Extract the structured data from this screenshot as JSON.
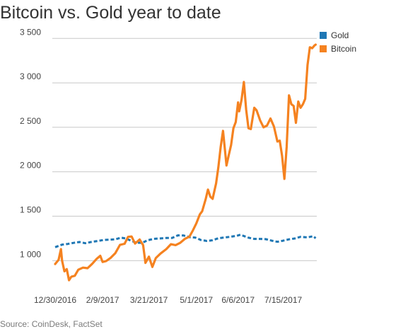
{
  "title": "Bitcoin vs. Gold year to date",
  "source": "Source: CoinDesk, FactSet",
  "chart_data": {
    "type": "line",
    "title": "Bitcoin vs. Gold year to date",
    "xlabel": "",
    "ylabel": "",
    "x_ticks": [
      "12/30/2016",
      "2/9/2017",
      "3/21/2017",
      "5/1/2017",
      "6/6/2017",
      "7/15/2017"
    ],
    "y_ticks": [
      1000,
      1500,
      2000,
      2500,
      3000,
      3500
    ],
    "y_tick_labels": [
      "1 000",
      "1 500",
      "2 000",
      "2 500",
      "3 000",
      "3 500"
    ],
    "ylim": [
      780,
      3550
    ],
    "xlim": [
      "2016-12-30",
      "2017-08-13"
    ],
    "grid": true,
    "legend_position": "top-right",
    "series": [
      {
        "name": "Gold",
        "color": "#1f77b4",
        "style": "dashed",
        "points": [
          [
            "2016-12-30",
            1152
          ],
          [
            "2017-01-05",
            1180
          ],
          [
            "2017-01-10",
            1188
          ],
          [
            "2017-01-15",
            1200
          ],
          [
            "2017-01-20",
            1210
          ],
          [
            "2017-01-25",
            1196
          ],
          [
            "2017-01-30",
            1210
          ],
          [
            "2017-02-05",
            1222
          ],
          [
            "2017-02-10",
            1233
          ],
          [
            "2017-02-15",
            1236
          ],
          [
            "2017-02-20",
            1240
          ],
          [
            "2017-02-25",
            1258
          ],
          [
            "2017-03-01",
            1250
          ],
          [
            "2017-03-05",
            1228
          ],
          [
            "2017-03-10",
            1203
          ],
          [
            "2017-03-15",
            1200
          ],
          [
            "2017-03-20",
            1230
          ],
          [
            "2017-03-25",
            1245
          ],
          [
            "2017-03-30",
            1250
          ],
          [
            "2017-04-05",
            1255
          ],
          [
            "2017-04-10",
            1255
          ],
          [
            "2017-04-15",
            1285
          ],
          [
            "2017-04-20",
            1283
          ],
          [
            "2017-04-25",
            1265
          ],
          [
            "2017-04-30",
            1260
          ],
          [
            "2017-05-05",
            1232
          ],
          [
            "2017-05-10",
            1222
          ],
          [
            "2017-05-15",
            1230
          ],
          [
            "2017-05-20",
            1252
          ],
          [
            "2017-05-25",
            1260
          ],
          [
            "2017-05-30",
            1268
          ],
          [
            "2017-06-05",
            1280
          ],
          [
            "2017-06-08",
            1292
          ],
          [
            "2017-06-15",
            1258
          ],
          [
            "2017-06-20",
            1245
          ],
          [
            "2017-06-25",
            1245
          ],
          [
            "2017-06-30",
            1242
          ],
          [
            "2017-07-05",
            1225
          ],
          [
            "2017-07-10",
            1212
          ],
          [
            "2017-07-15",
            1225
          ],
          [
            "2017-07-20",
            1240
          ],
          [
            "2017-07-25",
            1250
          ],
          [
            "2017-07-30",
            1268
          ],
          [
            "2017-08-05",
            1262
          ],
          [
            "2017-08-10",
            1275
          ],
          [
            "2017-08-12",
            1252
          ]
        ]
      },
      {
        "name": "Bitcoin",
        "color": "#f58220",
        "style": "solid",
        "points": [
          [
            "2016-12-30",
            962
          ],
          [
            "2017-01-02",
            1010
          ],
          [
            "2017-01-04",
            1130
          ],
          [
            "2017-01-05",
            1000
          ],
          [
            "2017-01-07",
            880
          ],
          [
            "2017-01-09",
            905
          ],
          [
            "2017-01-11",
            780
          ],
          [
            "2017-01-13",
            820
          ],
          [
            "2017-01-16",
            830
          ],
          [
            "2017-01-19",
            898
          ],
          [
            "2017-01-23",
            922
          ],
          [
            "2017-01-27",
            915
          ],
          [
            "2017-01-31",
            965
          ],
          [
            "2017-02-04",
            1022
          ],
          [
            "2017-02-07",
            1055
          ],
          [
            "2017-02-09",
            985
          ],
          [
            "2017-02-12",
            995
          ],
          [
            "2017-02-16",
            1032
          ],
          [
            "2017-02-20",
            1085
          ],
          [
            "2017-02-24",
            1178
          ],
          [
            "2017-02-28",
            1190
          ],
          [
            "2017-03-03",
            1268
          ],
          [
            "2017-03-06",
            1272
          ],
          [
            "2017-03-09",
            1192
          ],
          [
            "2017-03-13",
            1238
          ],
          [
            "2017-03-16",
            1175
          ],
          [
            "2017-03-18",
            975
          ],
          [
            "2017-03-21",
            1045
          ],
          [
            "2017-03-24",
            930
          ],
          [
            "2017-03-27",
            1030
          ],
          [
            "2017-03-31",
            1080
          ],
          [
            "2017-04-05",
            1130
          ],
          [
            "2017-04-09",
            1185
          ],
          [
            "2017-04-13",
            1175
          ],
          [
            "2017-04-17",
            1200
          ],
          [
            "2017-04-21",
            1245
          ],
          [
            "2017-04-25",
            1270
          ],
          [
            "2017-04-28",
            1340
          ],
          [
            "2017-05-01",
            1420
          ],
          [
            "2017-05-04",
            1520
          ],
          [
            "2017-05-06",
            1555
          ],
          [
            "2017-05-09",
            1690
          ],
          [
            "2017-05-11",
            1800
          ],
          [
            "2017-05-13",
            1720
          ],
          [
            "2017-05-15",
            1695
          ],
          [
            "2017-05-18",
            1870
          ],
          [
            "2017-05-20",
            2050
          ],
          [
            "2017-05-22",
            2280
          ],
          [
            "2017-05-24",
            2460
          ],
          [
            "2017-05-26",
            2200
          ],
          [
            "2017-05-27",
            2070
          ],
          [
            "2017-05-29",
            2190
          ],
          [
            "2017-05-31",
            2300
          ],
          [
            "2017-06-02",
            2490
          ],
          [
            "2017-06-04",
            2560
          ],
          [
            "2017-06-06",
            2780
          ],
          [
            "2017-06-07",
            2680
          ],
          [
            "2017-06-09",
            2810
          ],
          [
            "2017-06-11",
            3010
          ],
          [
            "2017-06-13",
            2700
          ],
          [
            "2017-06-15",
            2490
          ],
          [
            "2017-06-17",
            2480
          ],
          [
            "2017-06-20",
            2720
          ],
          [
            "2017-06-22",
            2690
          ],
          [
            "2017-06-25",
            2580
          ],
          [
            "2017-06-28",
            2500
          ],
          [
            "2017-07-01",
            2520
          ],
          [
            "2017-07-04",
            2600
          ],
          [
            "2017-07-07",
            2510
          ],
          [
            "2017-07-10",
            2340
          ],
          [
            "2017-07-12",
            2350
          ],
          [
            "2017-07-14",
            2180
          ],
          [
            "2017-07-16",
            1920
          ],
          [
            "2017-07-18",
            2280
          ],
          [
            "2017-07-20",
            2860
          ],
          [
            "2017-07-22",
            2760
          ],
          [
            "2017-07-24",
            2740
          ],
          [
            "2017-07-26",
            2550
          ],
          [
            "2017-07-28",
            2790
          ],
          [
            "2017-07-30",
            2720
          ],
          [
            "2017-08-01",
            2760
          ],
          [
            "2017-08-03",
            2820
          ],
          [
            "2017-08-05",
            3200
          ],
          [
            "2017-08-07",
            3400
          ],
          [
            "2017-08-09",
            3390
          ],
          [
            "2017-08-11",
            3420
          ],
          [
            "2017-08-12",
            3430
          ]
        ]
      }
    ]
  }
}
